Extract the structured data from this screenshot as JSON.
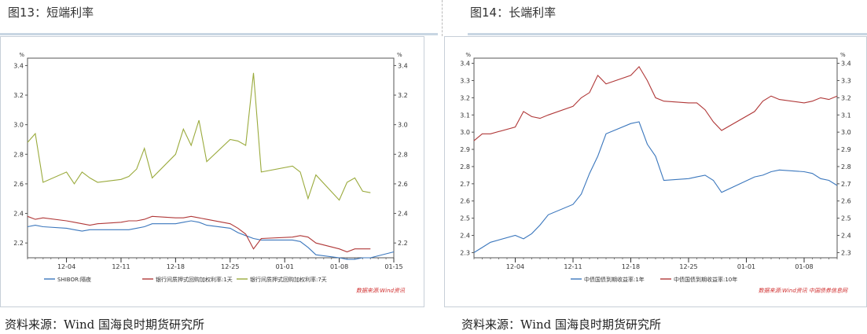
{
  "left": {
    "figure_title": "图13：短端利率",
    "source_text": "资料来源：Wind 国海良时期货研究所",
    "watermark": "数据来源:Wind资讯",
    "unit_left": "%",
    "unit_right": "%",
    "colors": {
      "s1": "#3b77bd",
      "s2": "#b03838",
      "s3": "#9aaa3c"
    },
    "chart_data": {
      "type": "line",
      "title": "",
      "xlabel": "",
      "ylabel": "%",
      "ylim": [
        2.1,
        3.45
      ],
      "yticks": [
        "2.2",
        "2.4",
        "2.6",
        "2.8",
        "3.0",
        "3.2",
        "3.4"
      ],
      "xlim": [
        "11-29",
        "01-15"
      ],
      "xtick_labels": [
        "12-04",
        "12-11",
        "12-18",
        "12-25",
        "01-01",
        "01-08",
        "01-15"
      ],
      "series": [
        {
          "name": "SHIBOR:隔夜",
          "x": [
            "11-29",
            "11-30",
            "12-01",
            "12-04",
            "12-05",
            "12-06",
            "12-07",
            "12-08",
            "12-11",
            "12-12",
            "12-13",
            "12-14",
            "12-15",
            "12-18",
            "12-19",
            "12-20",
            "12-21",
            "12-22",
            "12-25",
            "12-26",
            "12-27",
            "12-28",
            "12-29",
            "01-02",
            "01-03",
            "01-04",
            "01-05",
            "01-08",
            "01-09",
            "01-10",
            "01-11",
            "01-12",
            "01-15"
          ],
          "values": [
            2.31,
            2.32,
            2.31,
            2.3,
            2.29,
            2.28,
            2.29,
            2.29,
            2.29,
            2.29,
            2.3,
            2.31,
            2.33,
            2.33,
            2.34,
            2.35,
            2.34,
            2.32,
            2.3,
            2.27,
            2.25,
            2.23,
            2.22,
            2.22,
            2.21,
            2.17,
            2.12,
            2.1,
            2.09,
            2.09,
            2.1,
            2.1,
            2.14
          ]
        },
        {
          "name": "银行间质押式回购加权利率:1天",
          "x": [
            "11-29",
            "11-30",
            "12-01",
            "12-04",
            "12-05",
            "12-06",
            "12-07",
            "12-08",
            "12-11",
            "12-12",
            "12-13",
            "12-14",
            "12-15",
            "12-18",
            "12-19",
            "12-20",
            "12-21",
            "12-22",
            "12-25",
            "12-26",
            "12-27",
            "12-28",
            "12-29",
            "01-02",
            "01-03",
            "01-04",
            "01-05",
            "01-08",
            "01-09",
            "01-10",
            "01-11",
            "01-12"
          ],
          "values": [
            2.38,
            2.36,
            2.37,
            2.35,
            2.34,
            2.33,
            2.32,
            2.33,
            2.34,
            2.35,
            2.35,
            2.36,
            2.38,
            2.37,
            2.37,
            2.38,
            2.37,
            2.36,
            2.33,
            2.3,
            2.26,
            2.16,
            2.23,
            2.24,
            2.25,
            2.24,
            2.2,
            2.16,
            2.14,
            2.16,
            2.16,
            2.16
          ]
        },
        {
          "name": "银行间质押式回购加权利率:7天",
          "x": [
            "11-29",
            "11-30",
            "12-01",
            "12-04",
            "12-05",
            "12-06",
            "12-07",
            "12-08",
            "12-11",
            "12-12",
            "12-13",
            "12-14",
            "12-15",
            "12-18",
            "12-19",
            "12-20",
            "12-21",
            "12-22",
            "12-25",
            "12-26",
            "12-27",
            "12-28",
            "12-29",
            "01-02",
            "01-03",
            "01-04",
            "01-05",
            "01-08",
            "01-09",
            "01-10",
            "01-11",
            "01-12"
          ],
          "values": [
            2.88,
            2.94,
            2.61,
            2.68,
            2.6,
            2.68,
            2.64,
            2.61,
            2.63,
            2.65,
            2.7,
            2.84,
            2.64,
            2.8,
            2.97,
            2.86,
            3.03,
            2.75,
            2.9,
            2.89,
            2.86,
            3.35,
            2.68,
            2.72,
            2.68,
            2.5,
            2.66,
            2.49,
            2.61,
            2.64,
            2.55,
            2.54
          ]
        }
      ]
    }
  },
  "right": {
    "figure_title": "图14：长端利率",
    "source_text": "资料来源：Wind 国海良时期货研究所",
    "watermark": "数据来源:Wind资讯 中国债券信息网",
    "unit_left": "%",
    "unit_right": "%",
    "colors": {
      "s1": "#3b77bd",
      "s2": "#b03838"
    },
    "chart_data": {
      "type": "line",
      "title": "",
      "xlabel": "",
      "ylabel": "%",
      "ylim": [
        2.27,
        3.43
      ],
      "yticks": [
        "2.3",
        "2.4",
        "2.5",
        "2.6",
        "2.7",
        "2.8",
        "2.9",
        "3.0",
        "3.1",
        "3.2",
        "3.3",
        "3.4"
      ],
      "xlim": [
        "11-29",
        "01-12"
      ],
      "xtick_labels": [
        "12-04",
        "12-11",
        "12-18",
        "12-25",
        "01-01",
        "01-08"
      ],
      "series": [
        {
          "name": "中债国债到期收益率:1年",
          "x": [
            "11-29",
            "11-30",
            "12-01",
            "12-04",
            "12-05",
            "12-06",
            "12-07",
            "12-08",
            "12-11",
            "12-12",
            "12-13",
            "12-14",
            "12-15",
            "12-18",
            "12-19",
            "12-20",
            "12-21",
            "12-22",
            "12-25",
            "12-26",
            "12-27",
            "12-28",
            "12-29",
            "01-02",
            "01-03",
            "01-04",
            "01-05",
            "01-08",
            "01-09",
            "01-10",
            "01-11",
            "01-12"
          ],
          "values": [
            2.3,
            2.33,
            2.36,
            2.4,
            2.38,
            2.41,
            2.46,
            2.52,
            2.58,
            2.64,
            2.76,
            2.86,
            2.99,
            3.05,
            3.06,
            2.93,
            2.86,
            2.72,
            2.73,
            2.74,
            2.75,
            2.72,
            2.65,
            2.74,
            2.75,
            2.77,
            2.78,
            2.77,
            2.76,
            2.73,
            2.72,
            2.69
          ]
        },
        {
          "name": "中债国债到期收益率:10年",
          "x": [
            "11-29",
            "11-30",
            "12-01",
            "12-04",
            "12-05",
            "12-06",
            "12-07",
            "12-08",
            "12-11",
            "12-12",
            "12-13",
            "12-14",
            "12-15",
            "12-18",
            "12-19",
            "12-20",
            "12-21",
            "12-22",
            "12-25",
            "12-26",
            "12-27",
            "12-28",
            "12-29",
            "01-02",
            "01-03",
            "01-04",
            "01-05",
            "01-08",
            "01-09",
            "01-10",
            "01-11",
            "01-12"
          ],
          "values": [
            2.95,
            2.99,
            2.99,
            3.03,
            3.12,
            3.09,
            3.08,
            3.1,
            3.15,
            3.2,
            3.23,
            3.33,
            3.28,
            3.33,
            3.38,
            3.3,
            3.2,
            3.18,
            3.17,
            3.17,
            3.13,
            3.06,
            3.01,
            3.12,
            3.18,
            3.21,
            3.19,
            3.17,
            3.18,
            3.2,
            3.19,
            3.21
          ]
        }
      ]
    }
  }
}
